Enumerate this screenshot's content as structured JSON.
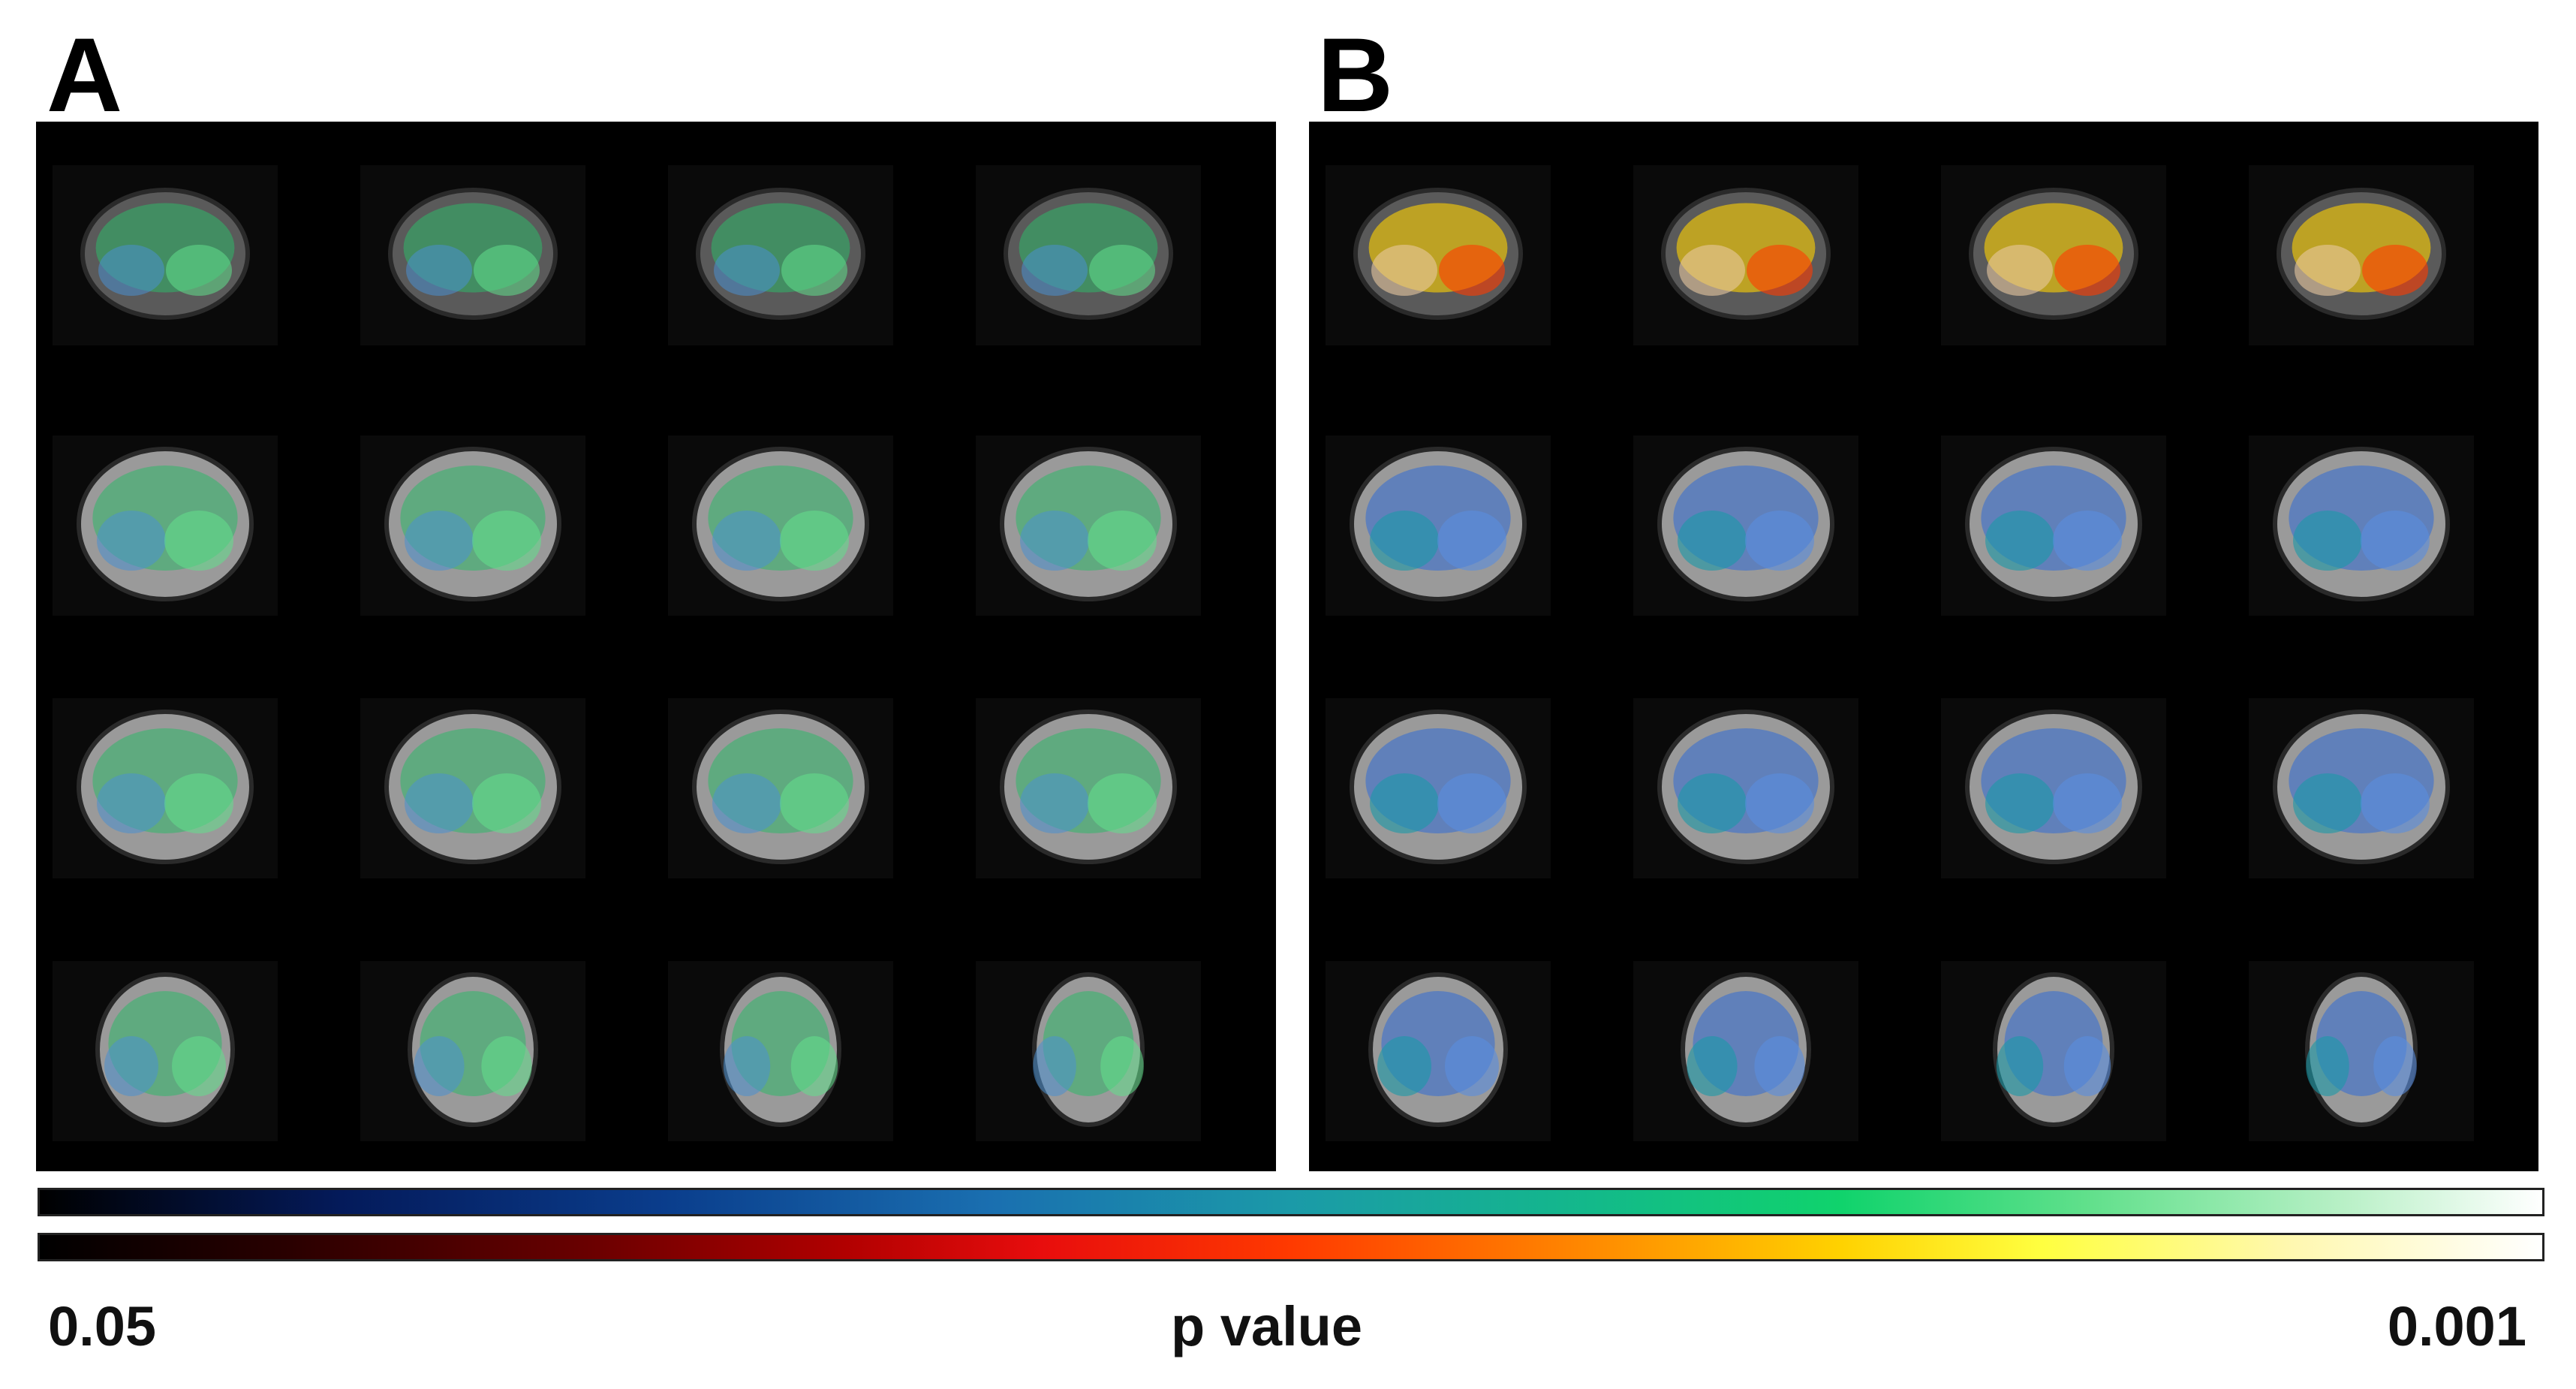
{
  "panels": {
    "a": {
      "label": "A",
      "overlay": "cool-green",
      "accent": "#10d36c"
    },
    "b": {
      "label": "B",
      "overlay": "hot-and-blue",
      "accent": "#ff8a00"
    }
  },
  "grid": {
    "rows": 4,
    "cols": 4,
    "view": "coronal brain slices"
  },
  "colorbars": {
    "cool": {
      "colors": [
        "#000000",
        "#0a3d8c",
        "#1b9aa8",
        "#10d36c",
        "#ffffff"
      ]
    },
    "hot": {
      "colors": [
        "#000000",
        "#b00000",
        "#ff3a00",
        "#ffd200",
        "#ffffff"
      ]
    }
  },
  "scale": {
    "min_label": "0.05",
    "title": "p value",
    "max_label": "0.001"
  }
}
